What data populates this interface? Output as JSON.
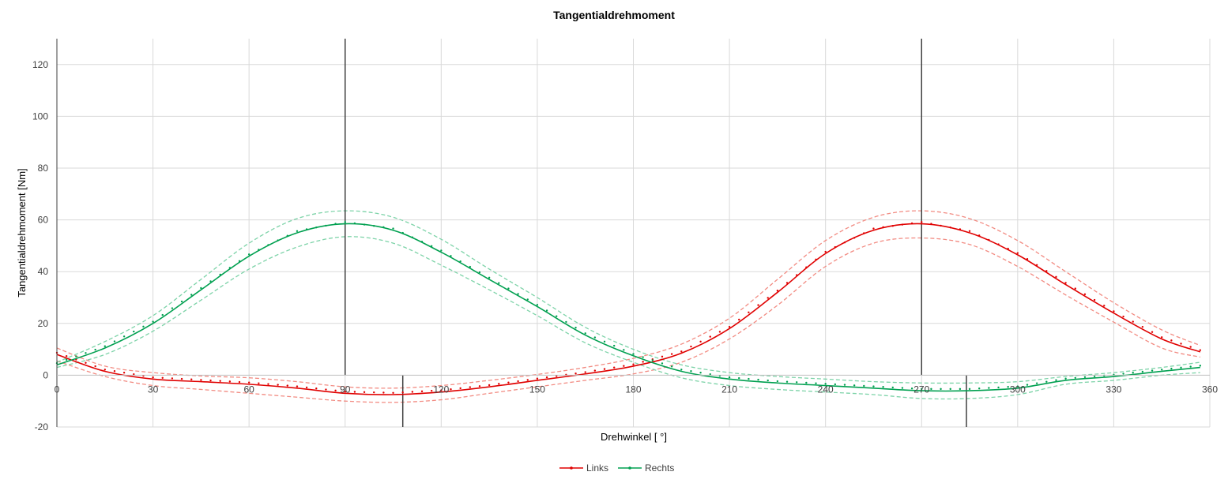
{
  "chart_data": {
    "type": "line",
    "title": "Tangentialdrehmoment",
    "xlabel": "Drehwinkel [ °]",
    "ylabel": "Tangentialdrehmoment [Nm]",
    "xlim": [
      0,
      360
    ],
    "ylim": [
      -20,
      130
    ],
    "xticks": [
      0,
      30,
      60,
      90,
      120,
      150,
      180,
      210,
      240,
      270,
      300,
      330,
      360
    ],
    "yticks": [
      -20,
      0,
      20,
      40,
      60,
      80,
      100,
      120
    ],
    "grid": true,
    "legend_position": "bottom",
    "x": [
      0,
      15,
      30,
      45,
      60,
      75,
      90,
      105,
      120,
      135,
      150,
      165,
      180,
      195,
      210,
      225,
      240,
      255,
      270,
      285,
      300,
      315,
      330,
      345,
      357
    ],
    "series": [
      {
        "name": "Links",
        "color": "#e00000",
        "band_color": "#f28b82",
        "values": [
          8,
          1.5,
          -1.5,
          -2.5,
          -3.5,
          -5,
          -7,
          -7.5,
          -6.5,
          -4.5,
          -2,
          0.5,
          3.5,
          8.5,
          18,
          32,
          47,
          56,
          58.5,
          55,
          46.5,
          35,
          24,
          14,
          9
        ],
        "band_upper": [
          10.5,
          3.5,
          1,
          -0.3,
          -1,
          -2.5,
          -4.5,
          -5,
          -4,
          -2,
          0.3,
          3,
          6.5,
          12,
          22,
          37,
          52,
          61,
          63.5,
          60.5,
          52,
          40,
          28,
          17.5,
          11.5
        ],
        "band_lower": [
          5.5,
          -0.5,
          -4,
          -5.5,
          -7,
          -8.5,
          -10,
          -10.5,
          -9.5,
          -7,
          -4.5,
          -2,
          0.5,
          5,
          14,
          27,
          42,
          51,
          53,
          50.5,
          42,
          31,
          20.5,
          10.5,
          7
        ]
      },
      {
        "name": "Rechts",
        "color": "#00a050",
        "band_color": "#7dd3a8",
        "values": [
          4,
          10.5,
          20,
          33,
          46,
          55,
          58.5,
          56,
          47.5,
          37,
          26.5,
          15.5,
          7.5,
          1.5,
          -1.5,
          -3,
          -4,
          -5,
          -6,
          -6,
          -5,
          -2,
          -0.5,
          1.5,
          3
        ]
      },
      {
        "name": "Rechts-upper",
        "values": [
          5,
          13,
          23,
          37,
          51,
          60.5,
          63.5,
          61,
          52.5,
          41,
          30,
          18.5,
          10,
          4,
          1,
          -0.5,
          -1.5,
          -2.5,
          -3,
          -3,
          -2.5,
          -0.5,
          1,
          3,
          5
        ]
      }
    ]
  },
  "legend": {
    "items": [
      {
        "label": "Links",
        "color": "#e00000"
      },
      {
        "label": "Rechts",
        "color": "#00a050"
      }
    ]
  },
  "markers": {
    "vertical_lines_x": [
      90,
      270
    ],
    "short_lines_x": [
      108,
      284
    ]
  }
}
